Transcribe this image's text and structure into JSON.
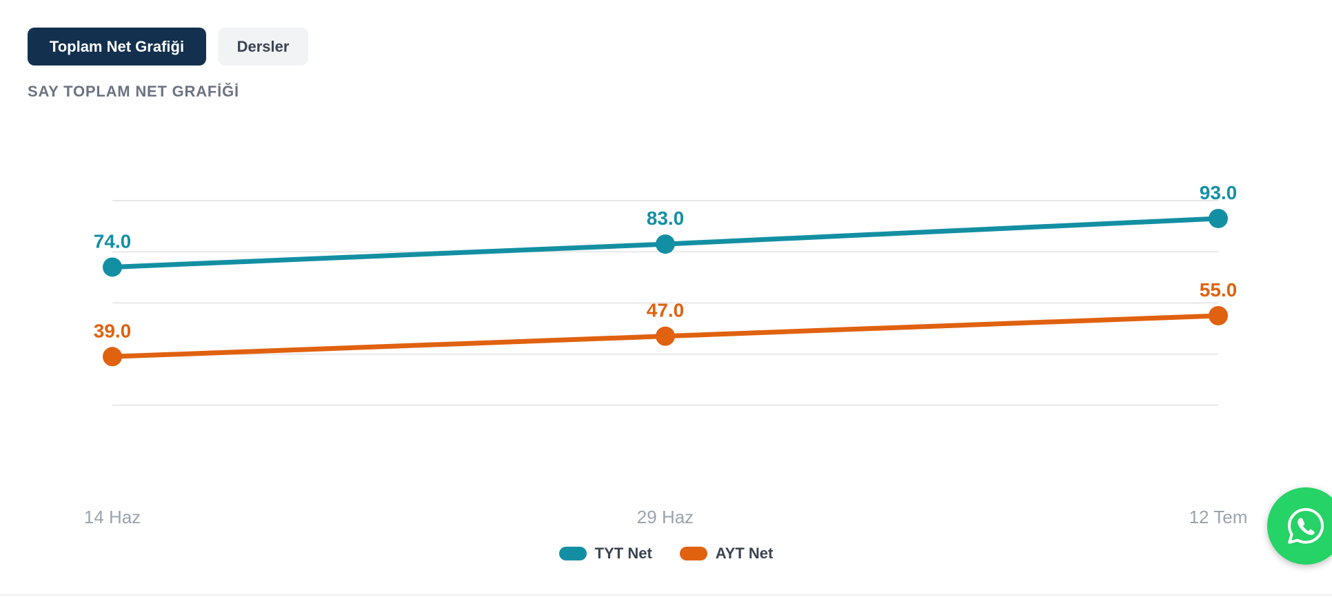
{
  "tabs": [
    {
      "label": "Toplam Net Grafiği",
      "active": true
    },
    {
      "label": "Dersler",
      "active": false
    }
  ],
  "section_title": "SAY TOPLAM NET GRAFİĞİ",
  "colors": {
    "tab_active_bg": "#13304f",
    "tyt": "#138fa3",
    "ayt": "#e0610f",
    "grid": "#e8e8e8",
    "tick_text": "#9aa3ae",
    "whatsapp": "#25d366"
  },
  "icons": {
    "floating_button": "whatsapp-icon"
  },
  "chart_data": {
    "type": "line",
    "categories": [
      "14 Haz",
      "29 Haz",
      "12 Tem"
    ],
    "series": [
      {
        "name": "TYT Net",
        "values": [
          74.0,
          83.0,
          93.0
        ],
        "color": "#138fa3",
        "labels": [
          "74.0",
          "83.0",
          "93.0"
        ]
      },
      {
        "name": "AYT Net",
        "values": [
          39.0,
          47.0,
          55.0
        ],
        "color": "#e0610f",
        "labels": [
          "39.0",
          "47.0",
          "55.0"
        ]
      }
    ],
    "ylim": [
      0,
      100
    ],
    "y_gridlines": [
      20,
      40,
      60,
      80,
      100
    ],
    "y_ticks_shown": false,
    "grid": true,
    "legend_position": "bottom-center",
    "title": "",
    "xlabel": "",
    "ylabel": ""
  }
}
